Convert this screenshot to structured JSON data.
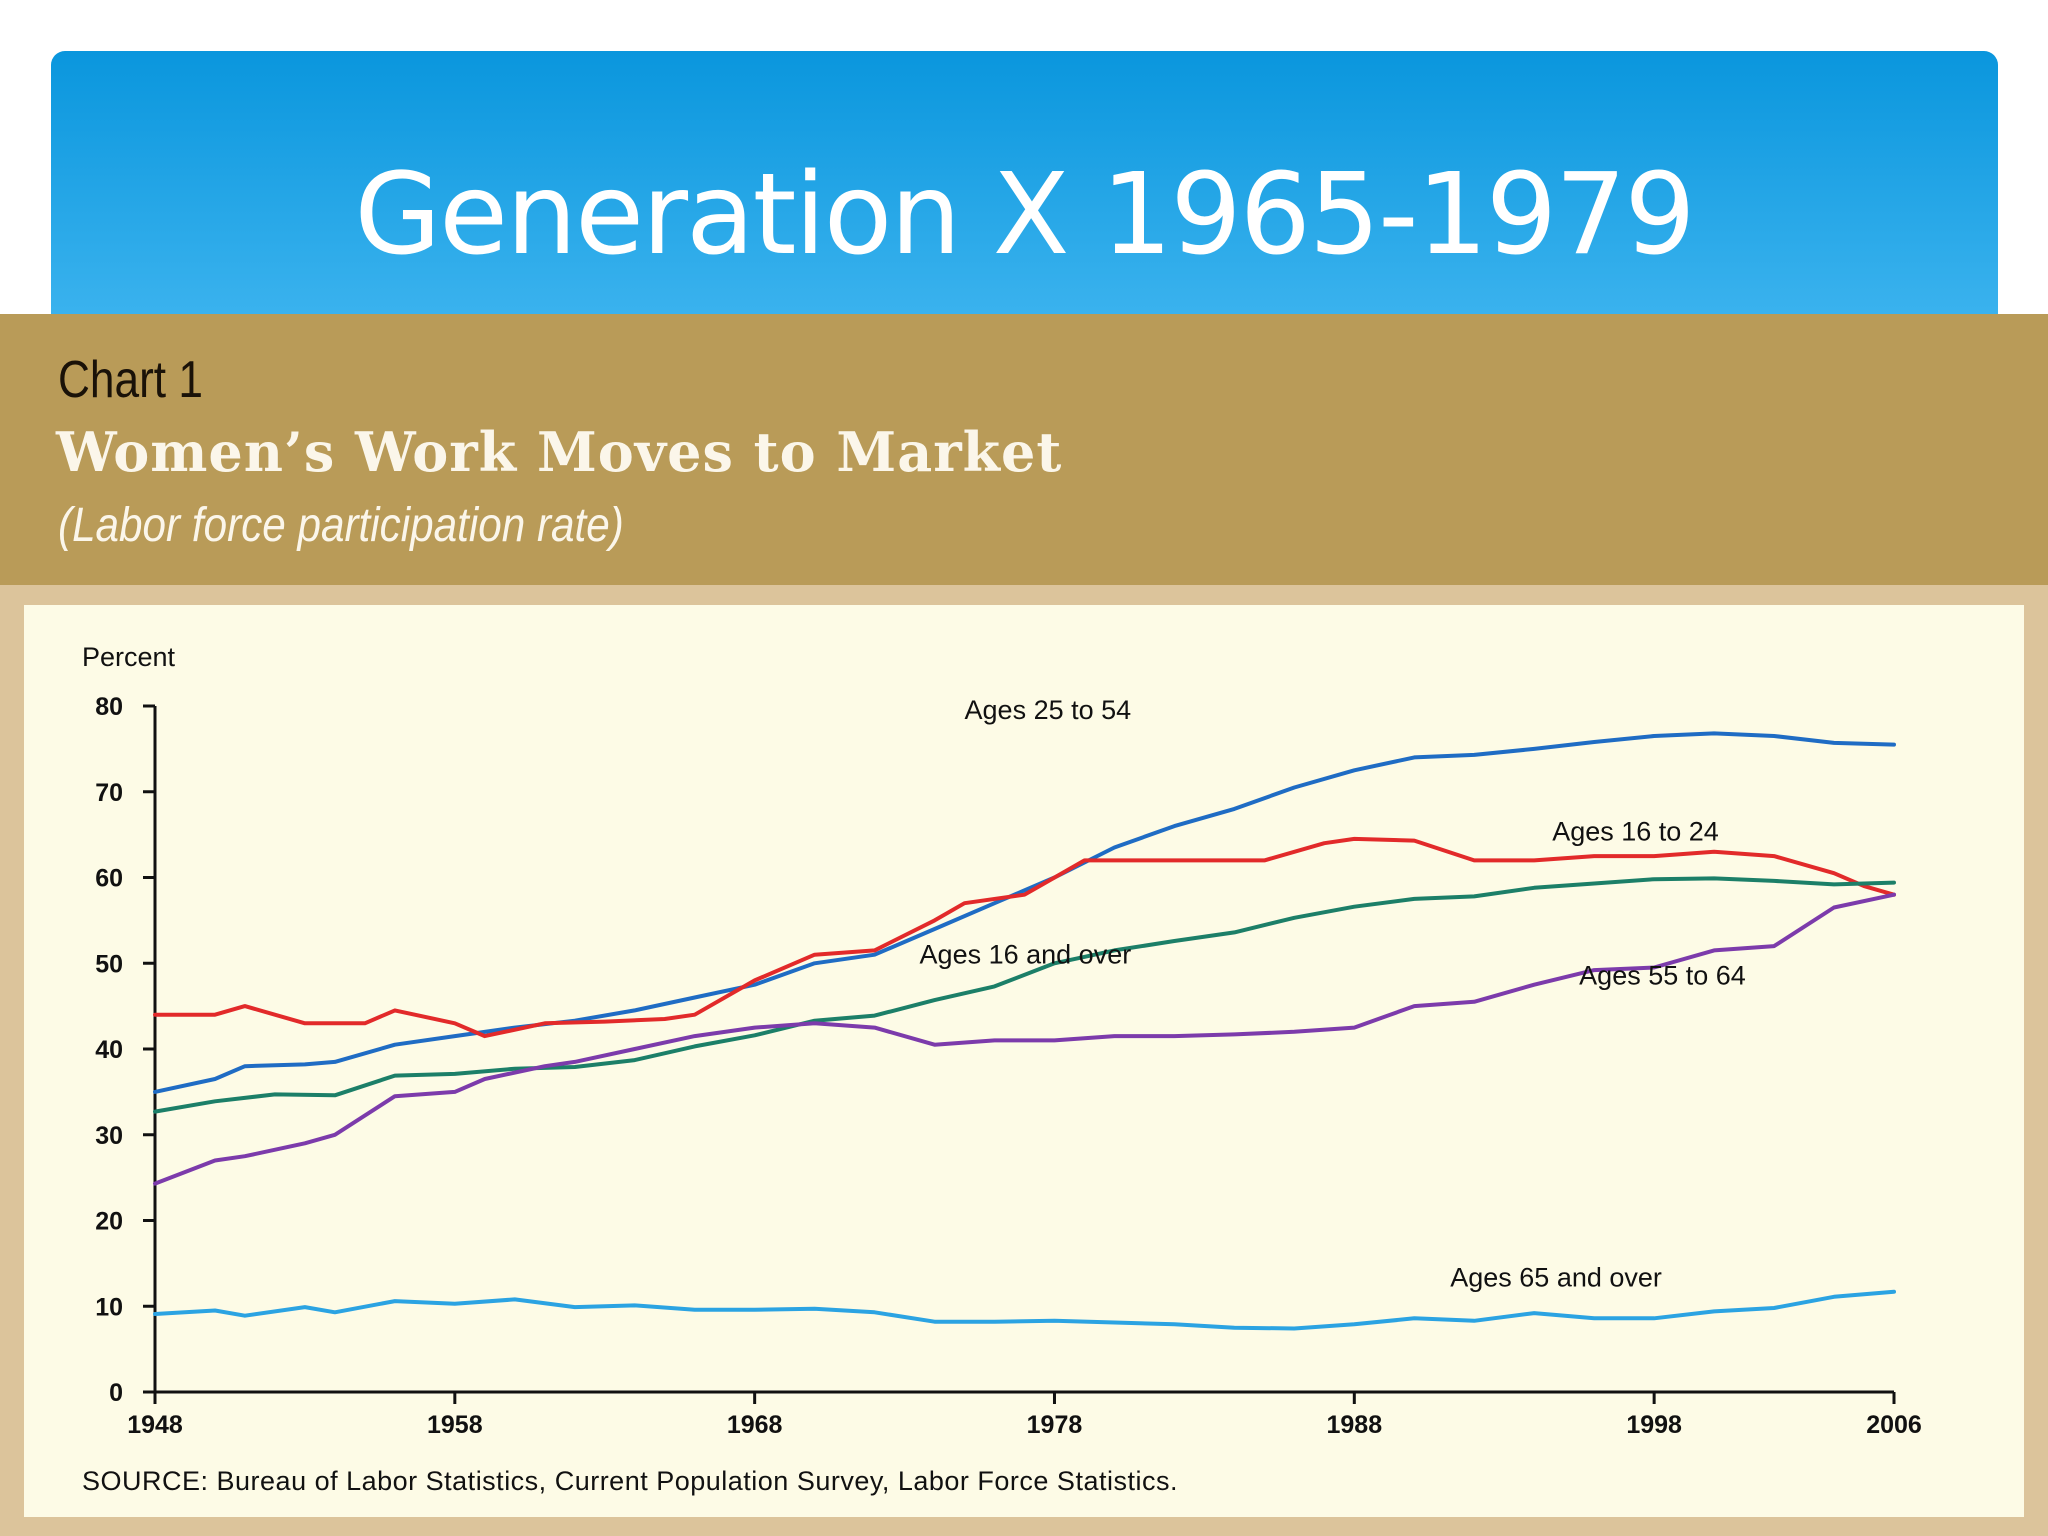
{
  "slide": {
    "title": "Generation X 1965-1979"
  },
  "chart_header": {
    "label": "Chart 1",
    "heading": "Women’s Work Moves to Market",
    "subheading": "(Labor force participation rate)"
  },
  "chart_data": {
    "type": "line",
    "title": "Women’s Work Moves to Market",
    "subtitle": "(Labor force participation rate)",
    "ylabel": "Percent",
    "xlabel": "",
    "xlim": [
      1948,
      2006
    ],
    "ylim": [
      0,
      80
    ],
    "x_ticks": [
      "1948",
      "1958",
      "1968",
      "1978",
      "1988",
      "1998",
      "2006"
    ],
    "y_ticks": [
      "0",
      "10",
      "20",
      "30",
      "40",
      "50",
      "60",
      "70",
      "80"
    ],
    "grid": false,
    "source": "SOURCE: Bureau of Labor Statistics, Current Population Survey, Labor Force Statistics.",
    "series": [
      {
        "name": "Ages 25 to 54",
        "color": "#1f6cc4",
        "label_x": 1975,
        "label_y": 78.5,
        "points": [
          [
            1948,
            35
          ],
          [
            1950,
            36.5
          ],
          [
            1951,
            38
          ],
          [
            1953,
            38.2
          ],
          [
            1954,
            38.5
          ],
          [
            1956,
            40.5
          ],
          [
            1958,
            41.5
          ],
          [
            1960,
            42.5
          ],
          [
            1962,
            43.3
          ],
          [
            1964,
            44.5
          ],
          [
            1966,
            46
          ],
          [
            1968,
            47.5
          ],
          [
            1970,
            50
          ],
          [
            1972,
            51
          ],
          [
            1974,
            54
          ],
          [
            1976,
            57
          ],
          [
            1978,
            60
          ],
          [
            1980,
            63.5
          ],
          [
            1982,
            66
          ],
          [
            1984,
            68
          ],
          [
            1986,
            70.5
          ],
          [
            1988,
            72.5
          ],
          [
            1990,
            74
          ],
          [
            1992,
            74.3
          ],
          [
            1994,
            75
          ],
          [
            1996,
            75.8
          ],
          [
            1998,
            76.5
          ],
          [
            2000,
            76.8
          ],
          [
            2002,
            76.5
          ],
          [
            2004,
            75.7
          ],
          [
            2006,
            75.5
          ]
        ]
      },
      {
        "name": "Ages 16 to 24",
        "color": "#e22a2a",
        "label_x": 1994.6,
        "label_y": 64.3,
        "points": [
          [
            1948,
            44
          ],
          [
            1950,
            44
          ],
          [
            1951,
            45
          ],
          [
            1953,
            43
          ],
          [
            1955,
            43
          ],
          [
            1956,
            44.5
          ],
          [
            1958,
            43
          ],
          [
            1959,
            41.5
          ],
          [
            1961,
            43
          ],
          [
            1963,
            43.2
          ],
          [
            1965,
            43.5
          ],
          [
            1966,
            44
          ],
          [
            1968,
            48
          ],
          [
            1970,
            51
          ],
          [
            1972,
            51.5
          ],
          [
            1974,
            55
          ],
          [
            1975,
            57
          ],
          [
            1977,
            58
          ],
          [
            1979,
            62
          ],
          [
            1981,
            62
          ],
          [
            1983,
            62
          ],
          [
            1985,
            62
          ],
          [
            1987,
            64
          ],
          [
            1988,
            64.5
          ],
          [
            1990,
            64.3
          ],
          [
            1992,
            62
          ],
          [
            1994,
            62
          ],
          [
            1996,
            62.5
          ],
          [
            1998,
            62.5
          ],
          [
            2000,
            63
          ],
          [
            2002,
            62.5
          ],
          [
            2004,
            60.5
          ],
          [
            2005,
            59
          ],
          [
            2006,
            58
          ]
        ]
      },
      {
        "name": "Ages 16 and over",
        "color": "#1c7f68",
        "label_x": 1973.5,
        "label_y": 50,
        "points": [
          [
            1948,
            32.7
          ],
          [
            1950,
            33.9
          ],
          [
            1952,
            34.7
          ],
          [
            1954,
            34.6
          ],
          [
            1956,
            36.9
          ],
          [
            1958,
            37.1
          ],
          [
            1960,
            37.7
          ],
          [
            1962,
            37.9
          ],
          [
            1964,
            38.7
          ],
          [
            1966,
            40.3
          ],
          [
            1968,
            41.6
          ],
          [
            1970,
            43.3
          ],
          [
            1972,
            43.9
          ],
          [
            1974,
            45.7
          ],
          [
            1976,
            47.3
          ],
          [
            1978,
            50
          ],
          [
            1980,
            51.5
          ],
          [
            1982,
            52.6
          ],
          [
            1984,
            53.6
          ],
          [
            1986,
            55.3
          ],
          [
            1988,
            56.6
          ],
          [
            1990,
            57.5
          ],
          [
            1992,
            57.8
          ],
          [
            1994,
            58.8
          ],
          [
            1996,
            59.3
          ],
          [
            1998,
            59.8
          ],
          [
            2000,
            59.9
          ],
          [
            2002,
            59.6
          ],
          [
            2004,
            59.2
          ],
          [
            2006,
            59.4
          ]
        ]
      },
      {
        "name": "Ages 55 to 64",
        "color": "#7c3bab",
        "label_x": 1995.5,
        "label_y": 47.5,
        "points": [
          [
            1948,
            24.3
          ],
          [
            1950,
            27
          ],
          [
            1951,
            27.5
          ],
          [
            1953,
            29
          ],
          [
            1954,
            30
          ],
          [
            1956,
            34.5
          ],
          [
            1958,
            35
          ],
          [
            1959,
            36.5
          ],
          [
            1961,
            38
          ],
          [
            1962,
            38.5
          ],
          [
            1964,
            40
          ],
          [
            1966,
            41.5
          ],
          [
            1968,
            42.5
          ],
          [
            1970,
            43
          ],
          [
            1972,
            42.5
          ],
          [
            1974,
            40.5
          ],
          [
            1976,
            41
          ],
          [
            1978,
            41
          ],
          [
            1980,
            41.5
          ],
          [
            1982,
            41.5
          ],
          [
            1984,
            41.7
          ],
          [
            1986,
            42
          ],
          [
            1988,
            42.5
          ],
          [
            1990,
            45
          ],
          [
            1992,
            45.5
          ],
          [
            1994,
            47.5
          ],
          [
            1996,
            49.2
          ],
          [
            1998,
            49.5
          ],
          [
            2000,
            51.5
          ],
          [
            2002,
            52
          ],
          [
            2004,
            56.5
          ],
          [
            2006,
            58
          ]
        ]
      },
      {
        "name": "Ages 65 and over",
        "color": "#2ba3e2",
        "label_x": 1991.2,
        "label_y": 12.3,
        "points": [
          [
            1948,
            9.1
          ],
          [
            1950,
            9.5
          ],
          [
            1951,
            8.9
          ],
          [
            1953,
            9.9
          ],
          [
            1954,
            9.3
          ],
          [
            1956,
            10.6
          ],
          [
            1958,
            10.3
          ],
          [
            1960,
            10.8
          ],
          [
            1962,
            9.9
          ],
          [
            1964,
            10.1
          ],
          [
            1966,
            9.6
          ],
          [
            1968,
            9.6
          ],
          [
            1970,
            9.7
          ],
          [
            1972,
            9.3
          ],
          [
            1974,
            8.2
          ],
          [
            1976,
            8.2
          ],
          [
            1978,
            8.3
          ],
          [
            1980,
            8.1
          ],
          [
            1982,
            7.9
          ],
          [
            1984,
            7.5
          ],
          [
            1986,
            7.4
          ],
          [
            1988,
            7.9
          ],
          [
            1990,
            8.6
          ],
          [
            1992,
            8.3
          ],
          [
            1994,
            9.2
          ],
          [
            1996,
            8.6
          ],
          [
            1998,
            8.6
          ],
          [
            2000,
            9.4
          ],
          [
            2002,
            9.8
          ],
          [
            2004,
            11.1
          ],
          [
            2006,
            11.7
          ]
        ]
      }
    ]
  }
}
